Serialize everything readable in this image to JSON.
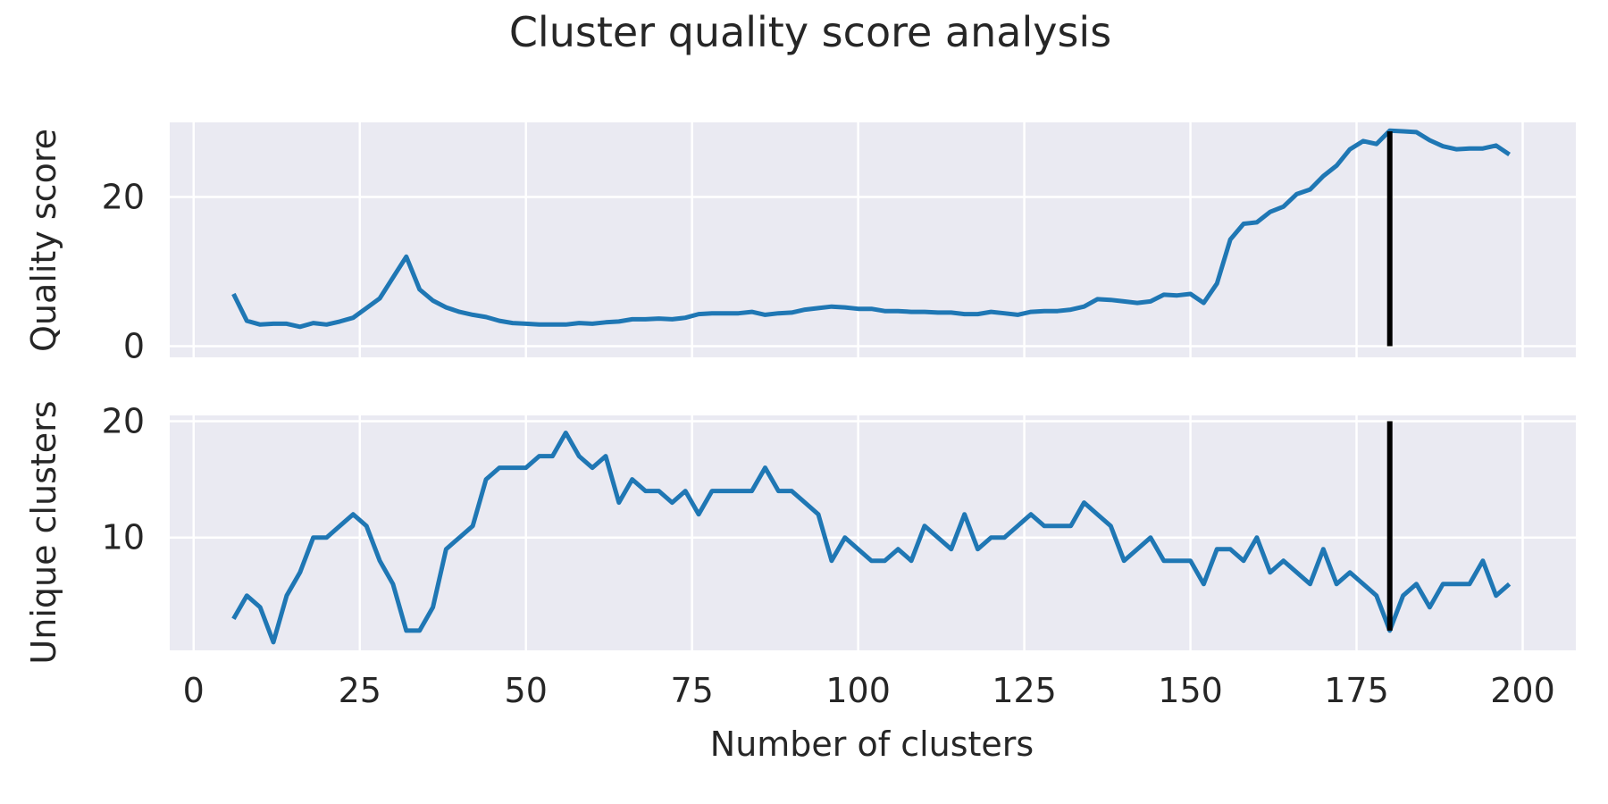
{
  "title": "Cluster quality score analysis",
  "xlabel": "Number of clusters",
  "chart_data": [
    {
      "type": "line",
      "panel": "top",
      "ylabel": "Quality score",
      "xlim": [
        -3.6,
        208
      ],
      "ylim": [
        -1.5,
        30
      ],
      "xticks": [
        0,
        25,
        50,
        75,
        100,
        125,
        150,
        175,
        200
      ],
      "yticks": [
        0,
        20
      ],
      "grid": true,
      "vline": {
        "x": 180,
        "ymin": 0,
        "ymax": 28.8
      },
      "x": [
        6,
        8,
        10,
        12,
        14,
        16,
        18,
        20,
        22,
        24,
        26,
        28,
        30,
        32,
        34,
        36,
        38,
        40,
        42,
        44,
        46,
        48,
        50,
        52,
        54,
        56,
        58,
        60,
        62,
        64,
        66,
        68,
        70,
        72,
        74,
        76,
        78,
        80,
        82,
        84,
        86,
        88,
        90,
        92,
        94,
        96,
        98,
        100,
        102,
        104,
        106,
        108,
        110,
        112,
        114,
        116,
        118,
        120,
        122,
        124,
        126,
        128,
        130,
        132,
        134,
        136,
        138,
        140,
        142,
        144,
        146,
        148,
        150,
        152,
        154,
        156,
        158,
        160,
        162,
        164,
        166,
        168,
        170,
        172,
        174,
        176,
        178,
        180,
        182,
        184,
        186,
        188,
        190,
        192,
        194,
        196,
        198
      ],
      "y": [
        7.0,
        3.4,
        2.9,
        3.0,
        3.0,
        2.6,
        3.1,
        2.9,
        3.3,
        3.8,
        5.1,
        6.4,
        9.2,
        12.0,
        7.6,
        6.1,
        5.2,
        4.6,
        4.2,
        3.9,
        3.4,
        3.1,
        3.0,
        2.9,
        2.9,
        2.9,
        3.1,
        3.0,
        3.2,
        3.3,
        3.6,
        3.6,
        3.7,
        3.6,
        3.8,
        4.3,
        4.4,
        4.4,
        4.4,
        4.6,
        4.2,
        4.4,
        4.5,
        4.9,
        5.1,
        5.3,
        5.2,
        5.0,
        5.0,
        4.7,
        4.7,
        4.6,
        4.6,
        4.5,
        4.5,
        4.3,
        4.3,
        4.6,
        4.4,
        4.2,
        4.6,
        4.7,
        4.7,
        4.9,
        5.3,
        6.3,
        6.2,
        6.0,
        5.8,
        6.0,
        6.9,
        6.8,
        7.0,
        5.8,
        8.4,
        14.3,
        16.4,
        16.6,
        18.0,
        18.7,
        20.4,
        21.0,
        22.8,
        24.2,
        26.4,
        27.5,
        27.1,
        28.9,
        28.8,
        28.7,
        27.6,
        26.8,
        26.4,
        26.5,
        26.5,
        26.9,
        25.7
      ]
    },
    {
      "type": "line",
      "panel": "bottom",
      "ylabel": "Unique clusters",
      "xlim": [
        -3.6,
        208
      ],
      "ylim": [
        0.3,
        20.5
      ],
      "xticks": [
        0,
        25,
        50,
        75,
        100,
        125,
        150,
        175,
        200
      ],
      "yticks": [
        10,
        20
      ],
      "grid": true,
      "vline": {
        "x": 180,
        "ymin": 2,
        "ymax": 20
      },
      "x": [
        6,
        8,
        10,
        12,
        14,
        16,
        18,
        20,
        22,
        24,
        26,
        28,
        30,
        32,
        34,
        36,
        38,
        40,
        42,
        44,
        46,
        48,
        50,
        52,
        54,
        56,
        58,
        60,
        62,
        64,
        66,
        68,
        70,
        72,
        74,
        76,
        78,
        80,
        82,
        84,
        86,
        88,
        90,
        92,
        94,
        96,
        98,
        100,
        102,
        104,
        106,
        108,
        110,
        112,
        114,
        116,
        118,
        120,
        122,
        124,
        126,
        128,
        130,
        132,
        134,
        136,
        138,
        140,
        142,
        144,
        146,
        148,
        150,
        152,
        154,
        156,
        158,
        160,
        162,
        164,
        166,
        168,
        170,
        172,
        174,
        176,
        178,
        180,
        182,
        184,
        186,
        188,
        190,
        192,
        194,
        196,
        198
      ],
      "y": [
        3,
        5,
        4,
        1,
        5,
        7,
        10,
        10,
        11,
        12,
        11,
        8,
        6,
        2,
        2,
        4,
        9,
        10,
        11,
        15,
        16,
        16,
        16,
        17,
        17,
        19,
        17,
        16,
        17,
        13,
        15,
        14,
        14,
        13,
        14,
        12,
        14,
        14,
        14,
        14,
        16,
        14,
        14,
        13,
        12,
        8,
        10,
        9,
        8,
        8,
        9,
        8,
        11,
        10,
        9,
        12,
        9,
        10,
        10,
        11,
        12,
        11,
        11,
        11,
        13,
        12,
        11,
        8,
        9,
        10,
        8,
        8,
        8,
        6,
        9,
        9,
        8,
        10,
        7,
        8,
        7,
        6,
        9,
        6,
        7,
        6,
        5,
        2,
        5,
        6,
        4,
        6,
        6,
        6,
        8,
        5,
        6
      ]
    }
  ]
}
